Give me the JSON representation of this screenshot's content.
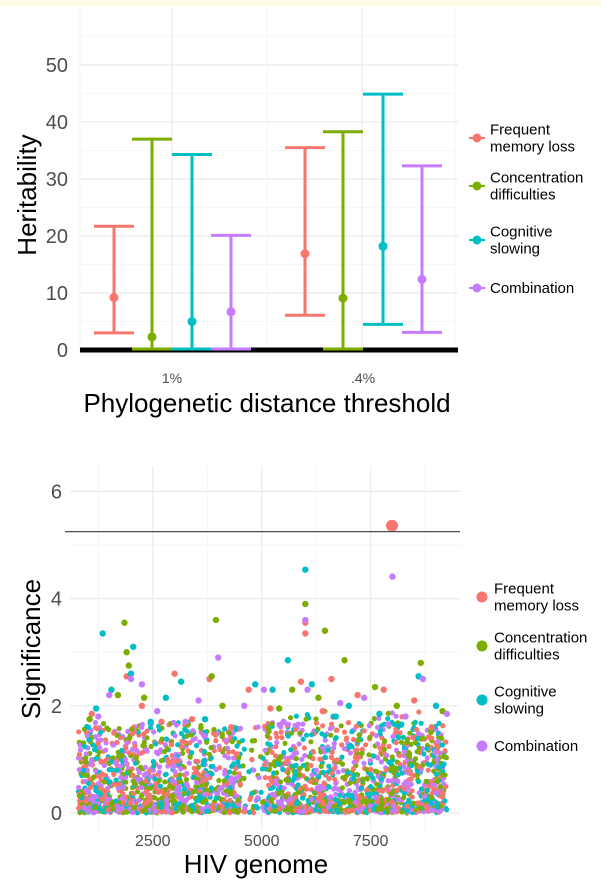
{
  "colors": {
    "red": "#F8766D",
    "green": "#7CAE00",
    "cyan": "#00BFC4",
    "purple": "#C77CFF",
    "grid": "#ebebeb",
    "threshold": "#4d4d4d"
  },
  "chart_data": [
    {
      "type": "errorbar",
      "xlabel": "Phylogenetic distance threshold",
      "ylabel": "Heritability",
      "ylim": [
        0,
        56
      ],
      "yticks": [
        "0",
        "10",
        "20",
        "30",
        "40",
        "50"
      ],
      "categories": [
        "1%",
        ".4%"
      ],
      "legend_position": "right",
      "grid": true,
      "legend": [
        {
          "lines": [
            "Frequent",
            "memory loss"
          ],
          "color": "#F8766D"
        },
        {
          "lines": [
            "Concentration",
            "difficulties"
          ],
          "color": "#7CAE00"
        },
        {
          "lines": [
            "Cognitive",
            "slowing"
          ],
          "color": "#00BFC4"
        },
        {
          "lines": [
            "Combination"
          ],
          "color": "#C77CFF"
        }
      ],
      "series": [
        {
          "name": "Frequent memory loss",
          "color": "#F8766D",
          "points": [
            {
              "x": "1%",
              "y": 9.2,
              "low": 3.0,
              "high": 21.7
            },
            {
              "x": ".4%",
              "y": 16.9,
              "low": 6.1,
              "high": 35.5
            }
          ]
        },
        {
          "name": "Concentration difficulties",
          "color": "#7CAE00",
          "points": [
            {
              "x": "1%",
              "y": 2.3,
              "low": 0.0,
              "high": 37.0
            },
            {
              "x": ".4%",
              "y": 9.1,
              "low": 0.0,
              "high": 38.3
            }
          ]
        },
        {
          "name": "Cognitive slowing",
          "color": "#00BFC4",
          "points": [
            {
              "x": "1%",
              "y": 5.0,
              "low": 0.0,
              "high": 34.3
            },
            {
              "x": ".4%",
              "y": 18.2,
              "low": 4.5,
              "high": 44.9
            }
          ]
        },
        {
          "name": "Combination",
          "color": "#C77CFF",
          "points": [
            {
              "x": "1%",
              "y": 6.7,
              "low": 0.0,
              "high": 20.1
            },
            {
              "x": ".4%",
              "y": 12.4,
              "low": 3.1,
              "high": 32.3
            }
          ]
        }
      ]
    },
    {
      "type": "scatter",
      "xlabel": "HIV genome",
      "ylabel": "Significance",
      "xlim": [
        600,
        9550
      ],
      "ylim": [
        -0.15,
        6.3
      ],
      "xticks": [
        2500,
        5000,
        7500
      ],
      "xtick_labels": [
        "2500",
        "5000",
        "7500"
      ],
      "yticks": [
        0,
        2,
        4,
        6
      ],
      "ytick_labels": [
        "0",
        "2",
        "4",
        "6"
      ],
      "threshold": 5.25,
      "legend_position": "right",
      "grid": true,
      "legend": [
        {
          "lines": [
            "Frequent",
            "memory loss"
          ],
          "color": "#F8766D"
        },
        {
          "lines": [
            "Concentration",
            "difficulties"
          ],
          "color": "#7CAE00"
        },
        {
          "lines": [
            "Cognitive",
            "slowing"
          ],
          "color": "#00BFC4"
        },
        {
          "lines": [
            "Combination"
          ],
          "color": "#C77CFF"
        }
      ],
      "series": [
        {
          "name": "Frequent memory loss",
          "color": "#F8766D",
          "points": [
            [
              7990,
              5.36
            ],
            [
              6000,
              3.55
            ],
            [
              6000,
              3.35
            ],
            [
              3000,
              2.6
            ],
            [
              1900,
              2.55
            ],
            [
              3800,
              2.5
            ],
            [
              6600,
              2.5
            ],
            [
              5900,
              2.45
            ],
            [
              4700,
              2.3
            ],
            [
              7200,
              2.2
            ],
            [
              7800,
              2.3
            ],
            [
              2250,
              2.0
            ],
            [
              8500,
              2.1
            ],
            [
              1100,
              1.85
            ],
            [
              5200,
              1.95
            ],
            [
              6400,
              1.9
            ],
            [
              3400,
              1.75
            ],
            [
              2700,
              1.7
            ],
            [
              8900,
              1.6
            ],
            [
              4300,
              1.6
            ]
          ]
        },
        {
          "name": "Concentration difficulties",
          "color": "#7CAE00",
          "points": [
            [
              1850,
              3.55
            ],
            [
              3950,
              3.6
            ],
            [
              6000,
              3.9
            ],
            [
              6450,
              3.4
            ],
            [
              1950,
              2.75
            ],
            [
              1900,
              3.0
            ],
            [
              3850,
              2.55
            ],
            [
              6900,
              2.85
            ],
            [
              8650,
              2.8
            ],
            [
              1700,
              2.2
            ],
            [
              5700,
              2.3
            ],
            [
              7600,
              2.35
            ],
            [
              2300,
              2.15
            ],
            [
              9150,
              1.9
            ],
            [
              4100,
              2.0
            ],
            [
              5400,
              1.95
            ],
            [
              8100,
              2.0
            ],
            [
              1050,
              1.75
            ],
            [
              6300,
              2.15
            ],
            [
              3300,
              1.65
            ]
          ]
        },
        {
          "name": "Cognitive slowing",
          "color": "#00BFC4",
          "points": [
            [
              6000,
              4.54
            ],
            [
              1350,
              3.35
            ],
            [
              2050,
              3.1
            ],
            [
              2000,
              2.6
            ],
            [
              5600,
              2.85
            ],
            [
              3150,
              2.45
            ],
            [
              1550,
              2.3
            ],
            [
              6150,
              2.4
            ],
            [
              8600,
              2.55
            ],
            [
              4850,
              2.4
            ],
            [
              7000,
              2.0
            ],
            [
              2800,
              2.15
            ],
            [
              9000,
              2.0
            ],
            [
              7700,
              1.85
            ],
            [
              3700,
              1.75
            ],
            [
              5250,
              2.3
            ],
            [
              1200,
              1.95
            ],
            [
              8200,
              1.65
            ],
            [
              2450,
              1.7
            ],
            [
              6700,
              1.8
            ]
          ]
        },
        {
          "name": "Combination",
          "color": "#C77CFF",
          "points": [
            [
              8000,
              4.41
            ],
            [
              6000,
              3.6
            ],
            [
              4000,
              2.9
            ],
            [
              2250,
              2.4
            ],
            [
              8700,
              2.5
            ],
            [
              2000,
              2.5
            ],
            [
              1500,
              2.2
            ],
            [
              5050,
              2.3
            ],
            [
              3550,
              2.1
            ],
            [
              6050,
              2.3
            ],
            [
              7350,
              2.15
            ],
            [
              4600,
              2.0
            ],
            [
              2600,
              1.9
            ],
            [
              9250,
              1.85
            ],
            [
              1250,
              1.8
            ],
            [
              6800,
              2.05
            ],
            [
              3250,
              1.7
            ],
            [
              8300,
              1.8
            ],
            [
              5500,
              1.7
            ],
            [
              7900,
              1.65
            ]
          ]
        }
      ]
    }
  ]
}
